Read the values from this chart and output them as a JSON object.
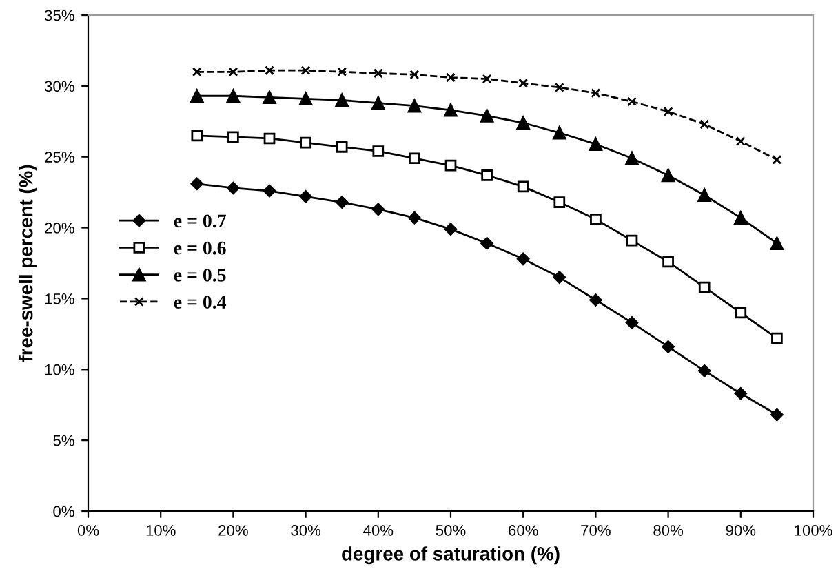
{
  "chart_data": {
    "type": "line",
    "xlabel": "degree of saturation (%)",
    "ylabel": "free-swell percent (%)",
    "x": [
      15,
      20,
      25,
      30,
      35,
      40,
      45,
      50,
      55,
      60,
      65,
      70,
      75,
      80,
      85,
      90,
      95
    ],
    "xlim": [
      0,
      100
    ],
    "xticks": [
      {
        "value": 0,
        "label": "0%"
      },
      {
        "value": 10,
        "label": "10%"
      },
      {
        "value": 20,
        "label": "20%"
      },
      {
        "value": 30,
        "label": "30%"
      },
      {
        "value": 40,
        "label": "40%"
      },
      {
        "value": 50,
        "label": "50%"
      },
      {
        "value": 60,
        "label": "60%"
      },
      {
        "value": 70,
        "label": "70%"
      },
      {
        "value": 80,
        "label": "80%"
      },
      {
        "value": 90,
        "label": "90%"
      },
      {
        "value": 100,
        "label": "100%"
      }
    ],
    "ylim": [
      0,
      35
    ],
    "yticks": [
      {
        "value": 0,
        "label": "0%"
      },
      {
        "value": 5,
        "label": "5%"
      },
      {
        "value": 10,
        "label": "10%"
      },
      {
        "value": 15,
        "label": "15%"
      },
      {
        "value": 20,
        "label": "20%"
      },
      {
        "value": 25,
        "label": "25%"
      },
      {
        "value": 30,
        "label": "30%"
      },
      {
        "value": 35,
        "label": "35%"
      }
    ],
    "grid": false,
    "legend": "left",
    "series": [
      {
        "name": "e = 0.7",
        "color": "#000000",
        "marker": "diamond",
        "line_style": "solid",
        "values": [
          23.1,
          22.8,
          22.6,
          22.2,
          21.8,
          21.3,
          20.7,
          19.9,
          18.9,
          17.8,
          16.5,
          14.9,
          13.3,
          11.6,
          9.9,
          8.3,
          6.8
        ]
      },
      {
        "name": "e = 0.6",
        "color": "#000000",
        "marker": "square",
        "line_style": "solid",
        "values": [
          26.5,
          26.4,
          26.3,
          26.0,
          25.7,
          25.4,
          24.9,
          24.4,
          23.7,
          22.9,
          21.8,
          20.6,
          19.1,
          17.6,
          15.8,
          14.0,
          12.2
        ]
      },
      {
        "name": "e = 0.5",
        "color": "#000000",
        "marker": "triangle",
        "line_style": "solid",
        "values": [
          29.3,
          29.3,
          29.2,
          29.1,
          29.0,
          28.8,
          28.6,
          28.3,
          27.9,
          27.4,
          26.7,
          25.9,
          24.9,
          23.7,
          22.3,
          20.7,
          18.9
        ]
      },
      {
        "name": "e = 0.4",
        "color": "#000000",
        "marker": "cross",
        "line_style": "dashed",
        "values": [
          31.0,
          31.0,
          31.1,
          31.1,
          31.0,
          30.9,
          30.8,
          30.6,
          30.5,
          30.2,
          29.9,
          29.5,
          28.9,
          28.2,
          27.3,
          26.1,
          24.8
        ]
      }
    ]
  }
}
